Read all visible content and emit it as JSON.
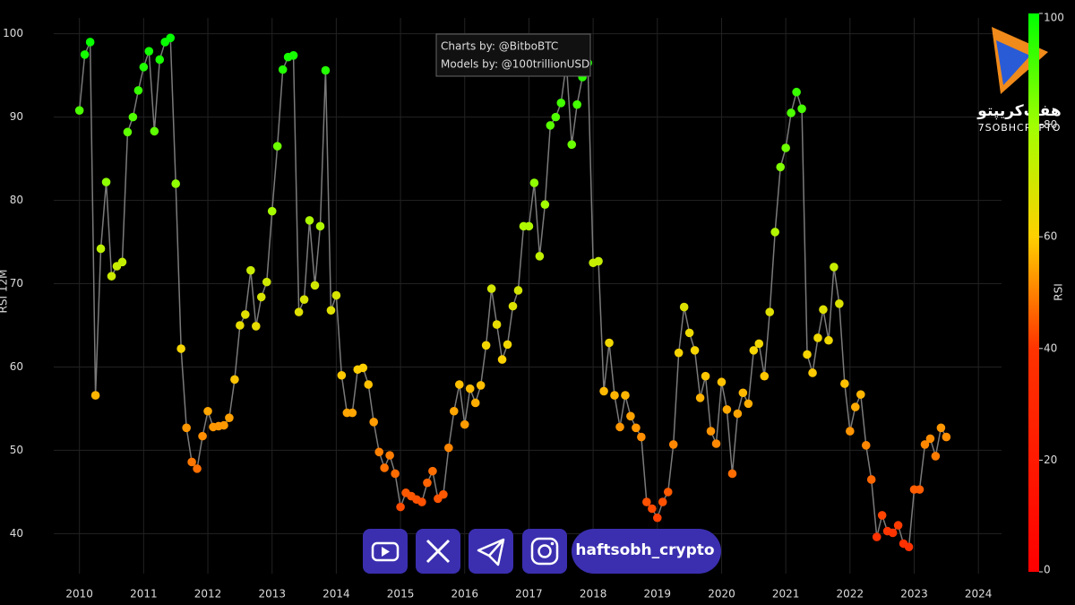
{
  "chart_data": {
    "type": "line-scatter",
    "ylabel": "RSI 12M",
    "annotation": [
      "Charts by: @BitboBTC",
      "Models by: @100trillionUSD"
    ],
    "x": [
      2010,
      2010.083,
      2010.167,
      2010.25,
      2010.333,
      2010.417,
      2010.5,
      2010.583,
      2010.667,
      2010.75,
      2010.833,
      2010.917,
      2011,
      2011.083,
      2011.167,
      2011.25,
      2011.333,
      2011.417,
      2011.5,
      2011.583,
      2011.667,
      2011.75,
      2011.833,
      2011.917,
      2012,
      2012.083,
      2012.167,
      2012.25,
      2012.333,
      2012.417,
      2012.5,
      2012.583,
      2012.667,
      2012.75,
      2012.833,
      2012.917,
      2013,
      2013.083,
      2013.167,
      2013.25,
      2013.333,
      2013.417,
      2013.5,
      2013.583,
      2013.667,
      2013.75,
      2013.833,
      2013.917,
      2014,
      2014.083,
      2014.167,
      2014.25,
      2014.333,
      2014.417,
      2014.5,
      2014.583,
      2014.667,
      2014.75,
      2014.833,
      2014.917,
      2015,
      2015.083,
      2015.167,
      2015.25,
      2015.333,
      2015.417,
      2015.5,
      2015.583,
      2015.667,
      2015.75,
      2015.833,
      2015.917,
      2016,
      2016.083,
      2016.167,
      2016.25,
      2016.333,
      2016.417,
      2016.5,
      2016.583,
      2016.667,
      2016.75,
      2016.833,
      2016.917,
      2017,
      2017.083,
      2017.167,
      2017.25,
      2017.333,
      2017.417,
      2017.5,
      2017.583,
      2017.667,
      2017.75,
      2017.833,
      2017.917,
      2018,
      2018.083,
      2018.167,
      2018.25,
      2018.333,
      2018.417,
      2018.5,
      2018.583,
      2018.667,
      2018.75,
      2018.833,
      2018.917,
      2019,
      2019.083,
      2019.167,
      2019.25,
      2019.333,
      2019.417,
      2019.5,
      2019.583,
      2019.667,
      2019.75,
      2019.833,
      2019.917,
      2020,
      2020.083,
      2020.167,
      2020.25,
      2020.333,
      2020.417,
      2020.5,
      2020.583,
      2020.667,
      2020.75,
      2020.833,
      2020.917,
      2021,
      2021.083,
      2021.167,
      2021.25,
      2021.333,
      2021.417,
      2021.5,
      2021.583,
      2021.667,
      2021.75,
      2021.833,
      2021.917,
      2022,
      2022.083,
      2022.167,
      2022.25,
      2022.333,
      2022.417,
      2022.5,
      2022.583,
      2022.667,
      2022.75,
      2022.833,
      2022.917,
      2023,
      2023.083,
      2023.167,
      2023.25,
      2023.333,
      2023.417,
      2023.5
    ],
    "values": [
      90.8,
      97.5,
      99.0,
      56.6,
      74.2,
      82.2,
      70.9,
      72.1,
      72.6,
      88.2,
      90.0,
      93.2,
      96.0,
      97.9,
      88.3,
      96.9,
      99.0,
      99.5,
      82.0,
      62.2,
      52.7,
      48.6,
      47.8,
      51.7,
      54.7,
      52.8,
      52.9,
      53.0,
      53.9,
      58.5,
      65.0,
      66.3,
      71.6,
      64.9,
      68.4,
      70.2,
      78.7,
      86.5,
      95.7,
      97.2,
      97.4,
      66.6,
      68.1,
      77.6,
      69.8,
      76.9,
      95.6,
      66.8,
      68.6,
      59.0,
      54.5,
      54.5,
      59.7,
      59.9,
      57.9,
      53.4,
      49.8,
      47.9,
      49.4,
      47.2,
      43.2,
      44.9,
      44.5,
      44.1,
      43.8,
      46.1,
      47.5,
      44.2,
      44.7,
      50.3,
      54.7,
      57.9,
      53.1,
      57.4,
      55.7,
      57.8,
      62.6,
      69.4,
      65.1,
      60.9,
      62.7,
      67.3,
      69.2,
      76.9,
      76.9,
      82.1,
      73.3,
      79.5,
      89.0,
      90.0,
      91.7,
      96.5,
      86.7,
      91.5,
      94.8,
      96.5,
      72.5,
      72.7,
      57.1,
      62.9,
      56.6,
      52.8,
      56.6,
      54.1,
      52.7,
      51.6,
      43.8,
      43.0,
      41.9,
      43.8,
      45.0,
      50.7,
      61.7,
      67.2,
      64.1,
      62.0,
      56.3,
      58.9,
      52.3,
      50.8,
      58.2,
      54.9,
      47.2,
      54.4,
      56.9,
      55.6,
      62.0,
      62.8,
      58.9,
      66.6,
      76.2,
      84.0,
      86.3,
      90.5,
      93.0,
      91.0,
      61.5,
      59.3,
      63.5,
      66.9,
      63.2,
      72.0,
      67.6,
      58.0,
      52.3,
      55.2,
      56.7,
      50.6,
      46.5,
      39.6,
      42.2,
      40.3,
      40.1,
      41.0,
      38.8,
      38.4,
      45.3,
      45.3,
      50.7,
      51.4,
      49.3,
      52.7,
      51.6
    ],
    "xlim": [
      2009.6,
      2024.36
    ],
    "ylim": [
      35.2,
      101.9
    ],
    "xticks": [
      2010,
      2011,
      2012,
      2013,
      2014,
      2015,
      2016,
      2017,
      2018,
      2019,
      2020,
      2021,
      2022,
      2023,
      2024
    ],
    "yticks": [
      40,
      50,
      60,
      70,
      80,
      90,
      100
    ],
    "grid": true,
    "line_color": "#7a7a7a",
    "colorbar": {
      "label": "RSI",
      "lim": [
        0,
        100
      ],
      "ticks": [
        0,
        20,
        40,
        60,
        80,
        100
      ],
      "colorscale": [
        [
          0,
          "#ff0000"
        ],
        [
          40,
          "#ff3300"
        ],
        [
          60,
          "#ffd000"
        ],
        [
          80,
          "#a0ff00"
        ],
        [
          100,
          "#00ff00"
        ]
      ]
    }
  },
  "logo": {
    "title": "هفت‌کریپتو",
    "subtitle": "7SOBHCRYPTO"
  },
  "social": {
    "handle": "haftsobh_crypto"
  }
}
